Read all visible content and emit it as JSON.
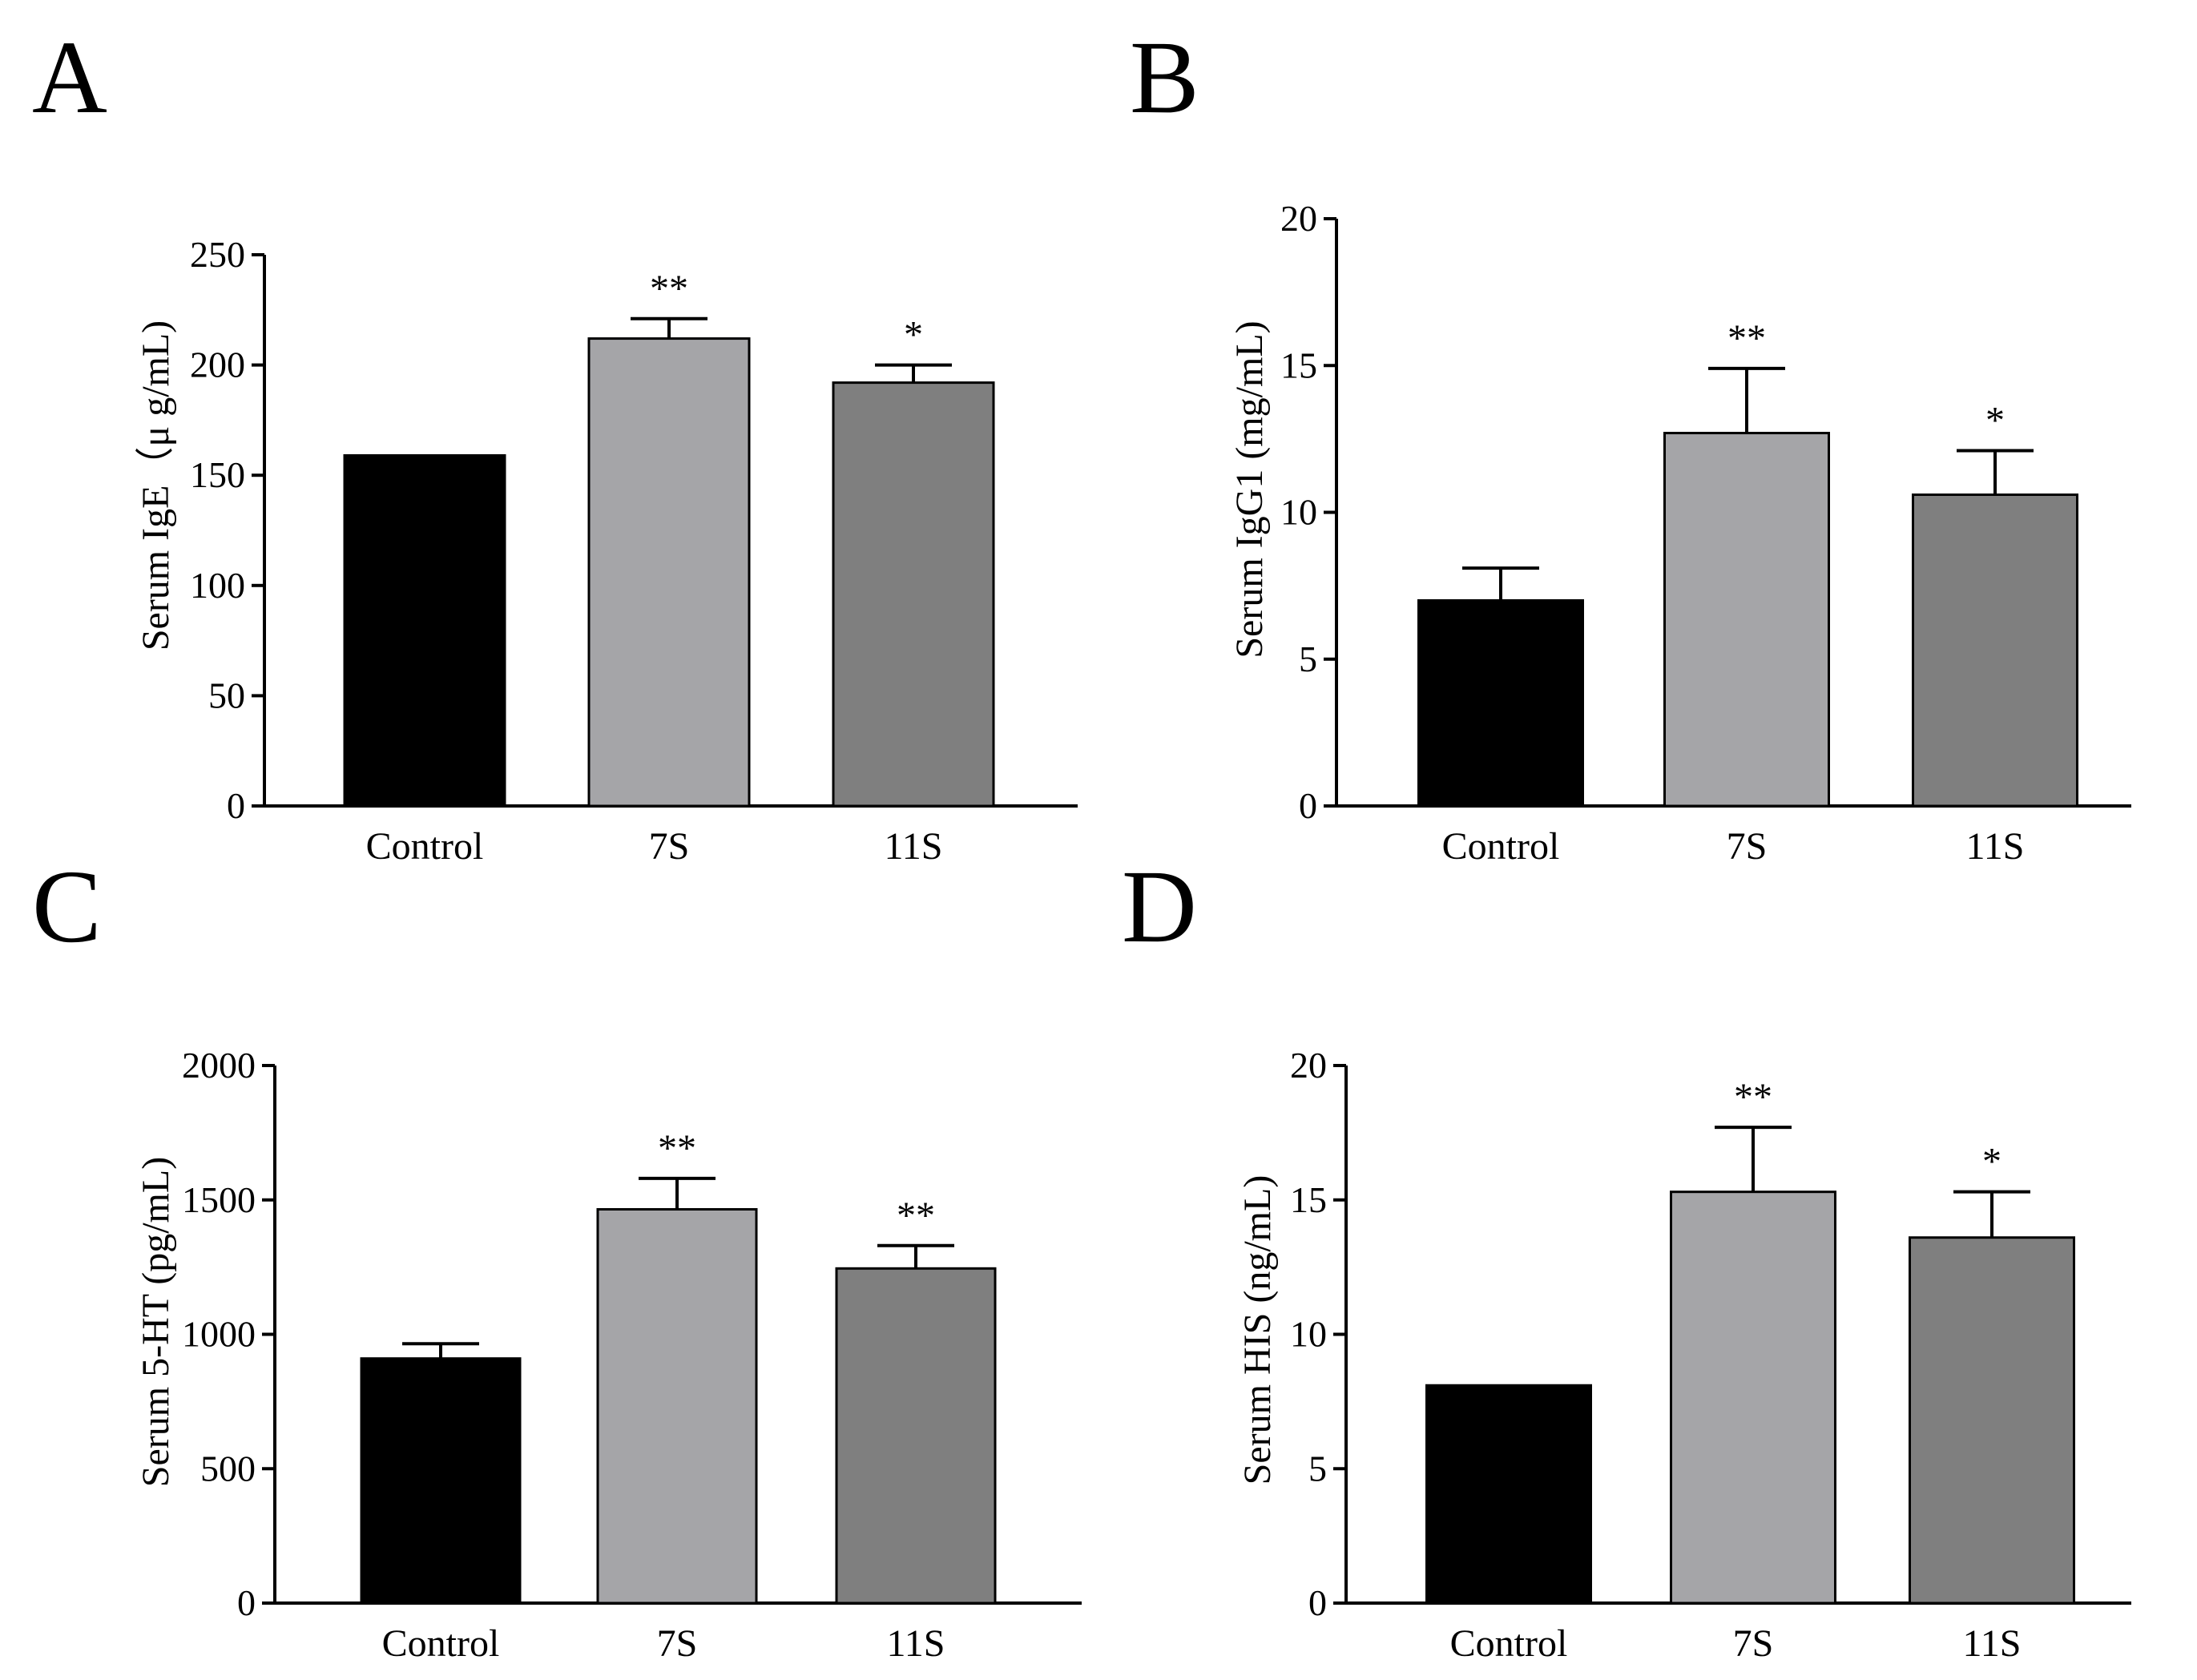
{
  "colors": {
    "control": "#000000",
    "seven_s": "#a5a5a8",
    "eleven_s": "#7f7f7f",
    "axis": "#000000"
  },
  "chart_data": [
    {
      "panel": "A",
      "type": "bar",
      "categories": [
        "Control",
        "7S",
        "11S"
      ],
      "values": [
        159,
        212,
        192
      ],
      "errors": [
        0,
        9,
        8
      ],
      "significance": [
        "",
        "**",
        "*"
      ],
      "ylabel": "Serum IgE（μ g/mL)",
      "ylim": [
        0,
        250
      ],
      "yticks": [
        0,
        50,
        100,
        150,
        200,
        250
      ]
    },
    {
      "panel": "B",
      "type": "bar",
      "categories": [
        "Control",
        "7S",
        "11S"
      ],
      "values": [
        7.0,
        12.7,
        10.6
      ],
      "errors": [
        1.1,
        2.2,
        1.5
      ],
      "significance": [
        "",
        "**",
        "*"
      ],
      "ylabel": "Serum IgG1 (mg/mL)",
      "ylim": [
        0,
        20
      ],
      "yticks": [
        0,
        5,
        10,
        15,
        20
      ]
    },
    {
      "panel": "C",
      "type": "bar",
      "categories": [
        "Control",
        "7S",
        "11S"
      ],
      "values": [
        910,
        1465,
        1245
      ],
      "errors": [
        55,
        115,
        85
      ],
      "significance": [
        "",
        "**",
        "**"
      ],
      "ylabel": "Serum 5-HT (pg/mL)",
      "ylim": [
        0,
        2000
      ],
      "yticks": [
        0,
        500,
        1000,
        1500,
        2000
      ]
    },
    {
      "panel": "D",
      "type": "bar",
      "categories": [
        "Control",
        "7S",
        "11S"
      ],
      "values": [
        8.1,
        15.3,
        13.6
      ],
      "errors": [
        0,
        2.4,
        1.7
      ],
      "significance": [
        "",
        "**",
        "*"
      ],
      "ylabel": "Serum HIS (ng/mL)",
      "ylim": [
        0,
        20
      ],
      "yticks": [
        0,
        5,
        10,
        15,
        20
      ]
    }
  ]
}
